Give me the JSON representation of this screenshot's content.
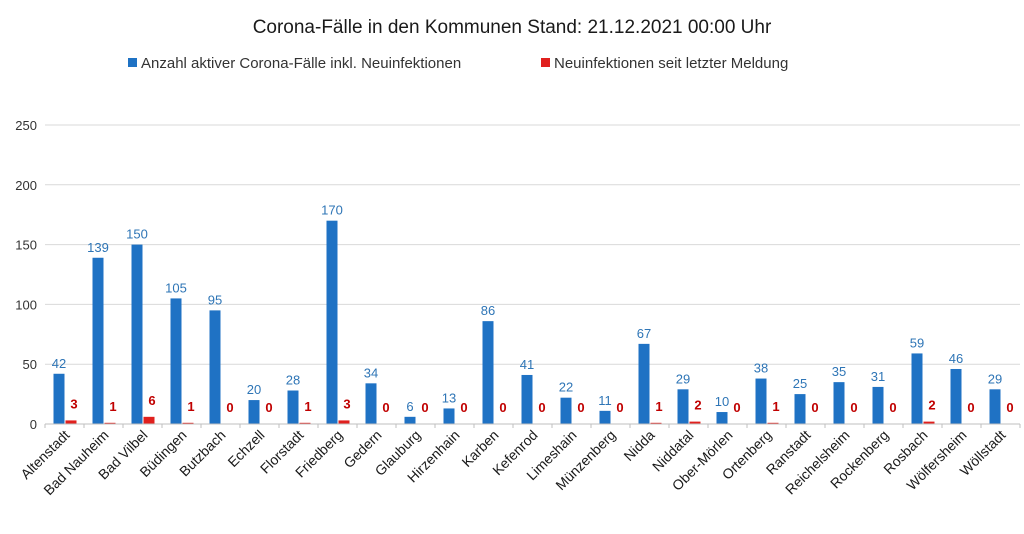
{
  "chart_data": {
    "type": "bar",
    "title": "Corona-Fälle in den Kommunen Stand: 21.12.2021 00:00 Uhr",
    "xlabel": "",
    "ylabel": "",
    "ylim": [
      0,
      250
    ],
    "yticks": [
      0,
      50,
      100,
      150,
      200,
      250
    ],
    "grid": true,
    "legend_position": "top",
    "categories": [
      "Altenstadt",
      "Bad Nauheim",
      "Bad Vilbel",
      "Büdingen",
      "Butzbach",
      "Echzell",
      "Florstadt",
      "Friedberg",
      "Gedern",
      "Glauburg",
      "Hirzenhain",
      "Karben",
      "Kefenrod",
      "Limeshain",
      "Münzenberg",
      "Nidda",
      "Niddatal",
      "Ober-Mörlen",
      "Ortenberg",
      "Ranstadt",
      "Reichelsheim",
      "Rockenberg",
      "Rosbach",
      "Wölfersheim",
      "Wöllstadt"
    ],
    "series": [
      {
        "name": "Anzahl aktiver Corona-Fälle inkl. Neuinfektionen",
        "color": "#1f72c4",
        "label_color": "#2e75b6",
        "values": [
          42,
          139,
          150,
          105,
          95,
          20,
          28,
          170,
          34,
          6,
          13,
          86,
          41,
          22,
          11,
          67,
          29,
          10,
          38,
          25,
          35,
          31,
          59,
          46,
          29
        ]
      },
      {
        "name": "Neuinfektionen seit letzter Meldung",
        "color": "#e0201e",
        "label_color": "#c00000",
        "values": [
          3,
          1,
          6,
          1,
          0,
          0,
          1,
          3,
          0,
          0,
          0,
          0,
          0,
          0,
          0,
          1,
          2,
          0,
          1,
          0,
          0,
          0,
          2,
          0,
          0
        ]
      }
    ]
  }
}
